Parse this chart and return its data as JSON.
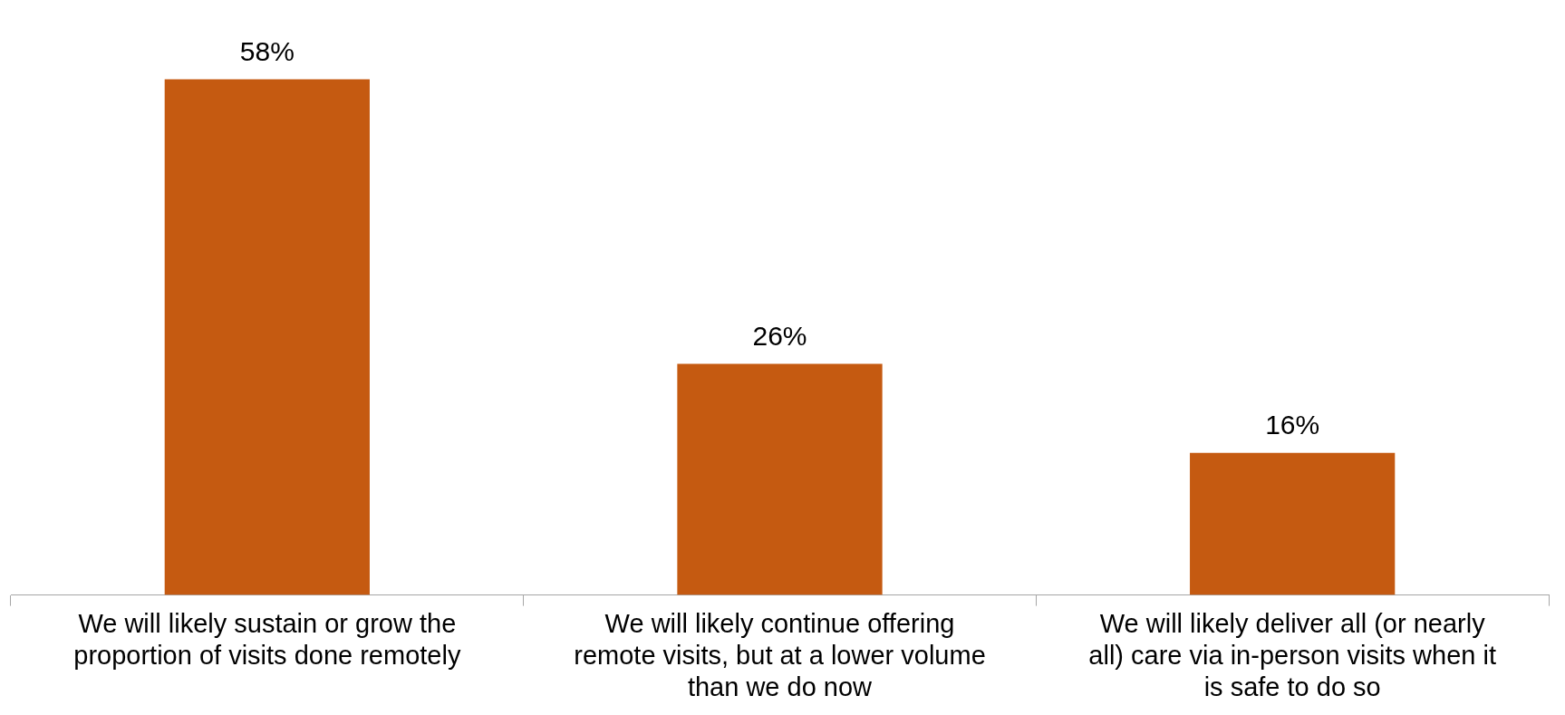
{
  "chart_data": {
    "type": "bar",
    "categories": [
      "We will likely sustain or grow the proportion of visits done remotely",
      "We will likely continue offering remote visits, but at a lower volume than we do now",
      "We will likely deliver all (or nearly all) care via in-person visits when it is safe to do so"
    ],
    "values": [
      58,
      26,
      16
    ],
    "color": "#c55a11",
    "value_labels": [
      "58%",
      "26%",
      "16%"
    ],
    "grid": false,
    "legend": false
  }
}
